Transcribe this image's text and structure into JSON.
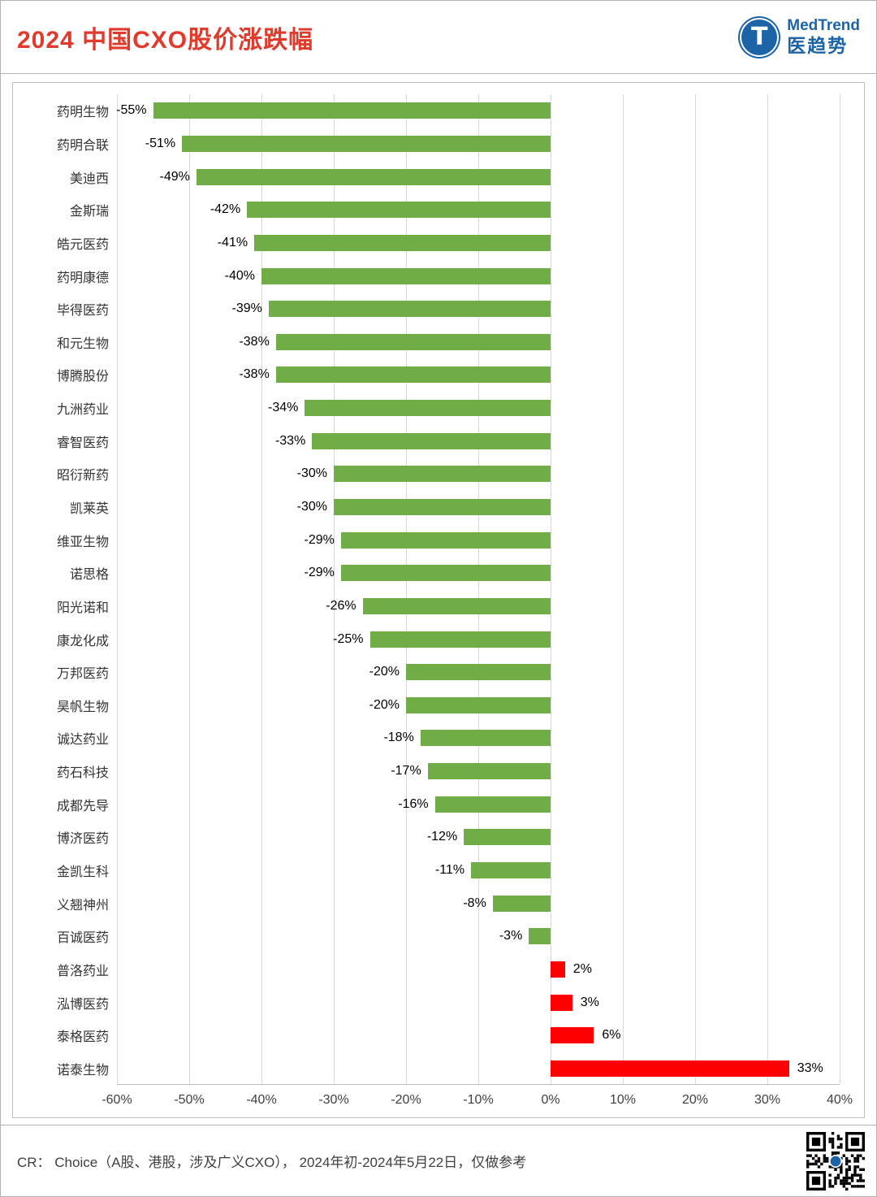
{
  "header": {
    "title": "2024 中国CXO股价涨跌幅",
    "logo": {
      "monogram": "T",
      "brand": "MedTrend",
      "brand_cn": "医趋势",
      "color": "#1c63a8"
    }
  },
  "chart_data": {
    "type": "bar",
    "orientation": "horizontal",
    "title": "2024 中国CXO股价涨跌幅",
    "categories": [
      "药明生物",
      "药明合联",
      "美迪西",
      "金斯瑞",
      "皓元医药",
      "药明康德",
      "毕得医药",
      "和元生物",
      "博腾股份",
      "九洲药业",
      "睿智医药",
      "昭衍新药",
      "凯莱英",
      "维亚生物",
      "诺思格",
      "阳光诺和",
      "康龙化成",
      "万邦医药",
      "昊帆生物",
      "诚达药业",
      "药石科技",
      "成都先导",
      "博济医药",
      "金凯生科",
      "义翘神州",
      "百诚医药",
      "普洛药业",
      "泓博医药",
      "泰格医药",
      "诺泰生物"
    ],
    "values": [
      -55,
      -51,
      -49,
      -42,
      -41,
      -40,
      -39,
      -38,
      -38,
      -34,
      -33,
      -30,
      -30,
      -29,
      -29,
      -26,
      -25,
      -20,
      -20,
      -18,
      -17,
      -16,
      -12,
      -11,
      -8,
      -3,
      2,
      3,
      6,
      33
    ],
    "labels": [
      "-55%",
      "-51%",
      "-49%",
      "-42%",
      "-41%",
      "-40%",
      "-39%",
      "-38%",
      "-38%",
      "-34%",
      "-33%",
      "-30%",
      "-30%",
      "-29%",
      "-29%",
      "-26%",
      "-25%",
      "-20%",
      "-20%",
      "-18%",
      "-17%",
      "-16%",
      "-12%",
      "-11%",
      "-8%",
      "-3%",
      "2%",
      "3%",
      "6%",
      "33%"
    ],
    "xlim": [
      -60,
      40
    ],
    "tick_values": [
      -60,
      -50,
      -40,
      -30,
      -20,
      -10,
      0,
      10,
      20,
      30,
      40
    ],
    "x_ticks": [
      "-60%",
      "-50%",
      "-40%",
      "-30%",
      "-20%",
      "-10%",
      "0%",
      "10%",
      "20%",
      "30%",
      "40%"
    ],
    "negative_color": "#70AD47",
    "positive_color": "#FF0000",
    "grid": true,
    "legend": false,
    "xlabel": "",
    "ylabel": ""
  },
  "footer": {
    "source": "CR： Choice（A股、港股，涉及广义CXO）， 2024年初-2024年5月22日，仅做参考"
  }
}
